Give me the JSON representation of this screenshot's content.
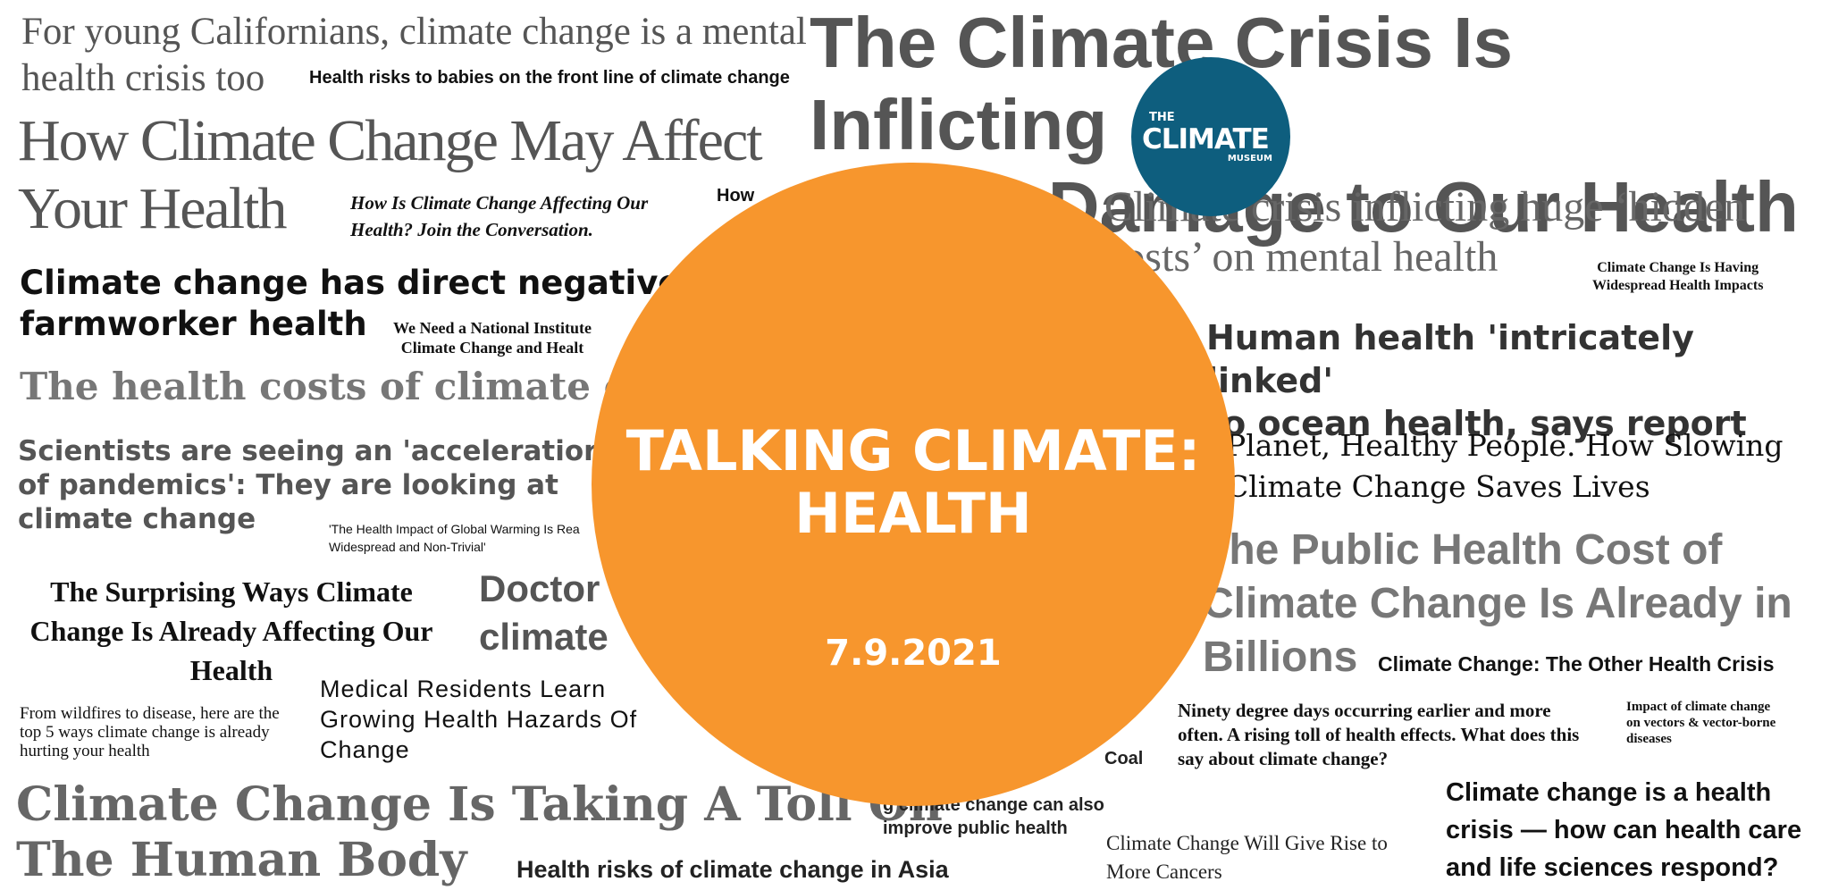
{
  "center": {
    "title": "TALKING CLIMATE:\nHEALTH",
    "date": "7.9.2021",
    "accent_color": "#F7962D"
  },
  "logo": {
    "line1": "THE",
    "line2": "CLIMATE",
    "line3": "MUSEUM",
    "bg_color": "#0E5E7E"
  },
  "headlines": {
    "left": [
      "For young Californians, climate change is a mental\nhealth crisis too",
      "Health risks to babies on the front line of climate change",
      "How Climate Change May Affect\nYour Health",
      "How Is Climate Change Affecting Our\nHealth? Join the Conversation.",
      "How",
      "Climate change has direct negative in\nfarmworker health",
      "We Need a National Institute\nClimate Change and Healt",
      "The health costs of climate char",
      "Scientists are seeing an 'acceleratior\nof pandemics': They are looking at\nclimate change",
      "'The Health Impact of Global Warming Is Rea\nWidespread and Non-Trivial'",
      "The Surprising Ways Climate\nChange Is Already Affecting Our\nHealth",
      "Doctor\nclimate",
      "From wildfires to disease, here are the\ntop 5 ways climate change is already\nhurting your health",
      "Medical Residents Learn\nGrowing Health Hazards Of\nChange",
      "Climate Change Is Taking A Toll On\nThe Human Body",
      "Health risks of climate change in Asia",
      "g climate change can also\nimprove public health",
      "Coal"
    ],
    "right": [
      "The Climate Crisis Is Inflicting\nCostly Damage to Our Health",
      "Climate crisis inflicting huge ‘hidden\ncosts’ on mental health",
      "Climate Change Is Having\nWidespread Health Impacts",
      "Human health 'intricately linked'\nto ocean health, says report",
      "Planet, Healthy People. How Slowing\nClimate Change Saves Lives",
      "The Public Health Cost of\nClimate Change Is Already in\nBillions",
      "Climate Change: The Other Health Crisis",
      "Ninety degree days occurring earlier and more\noften. A rising toll of health effects. What does this\nsay about climate change?",
      "Impact of climate change\non vectors & vector-borne\ndiseases",
      "Climate change is a health\ncrisis — how can health care\nand life sciences respond?",
      "Climate Change Will Give Rise to\nMore Cancers"
    ]
  }
}
